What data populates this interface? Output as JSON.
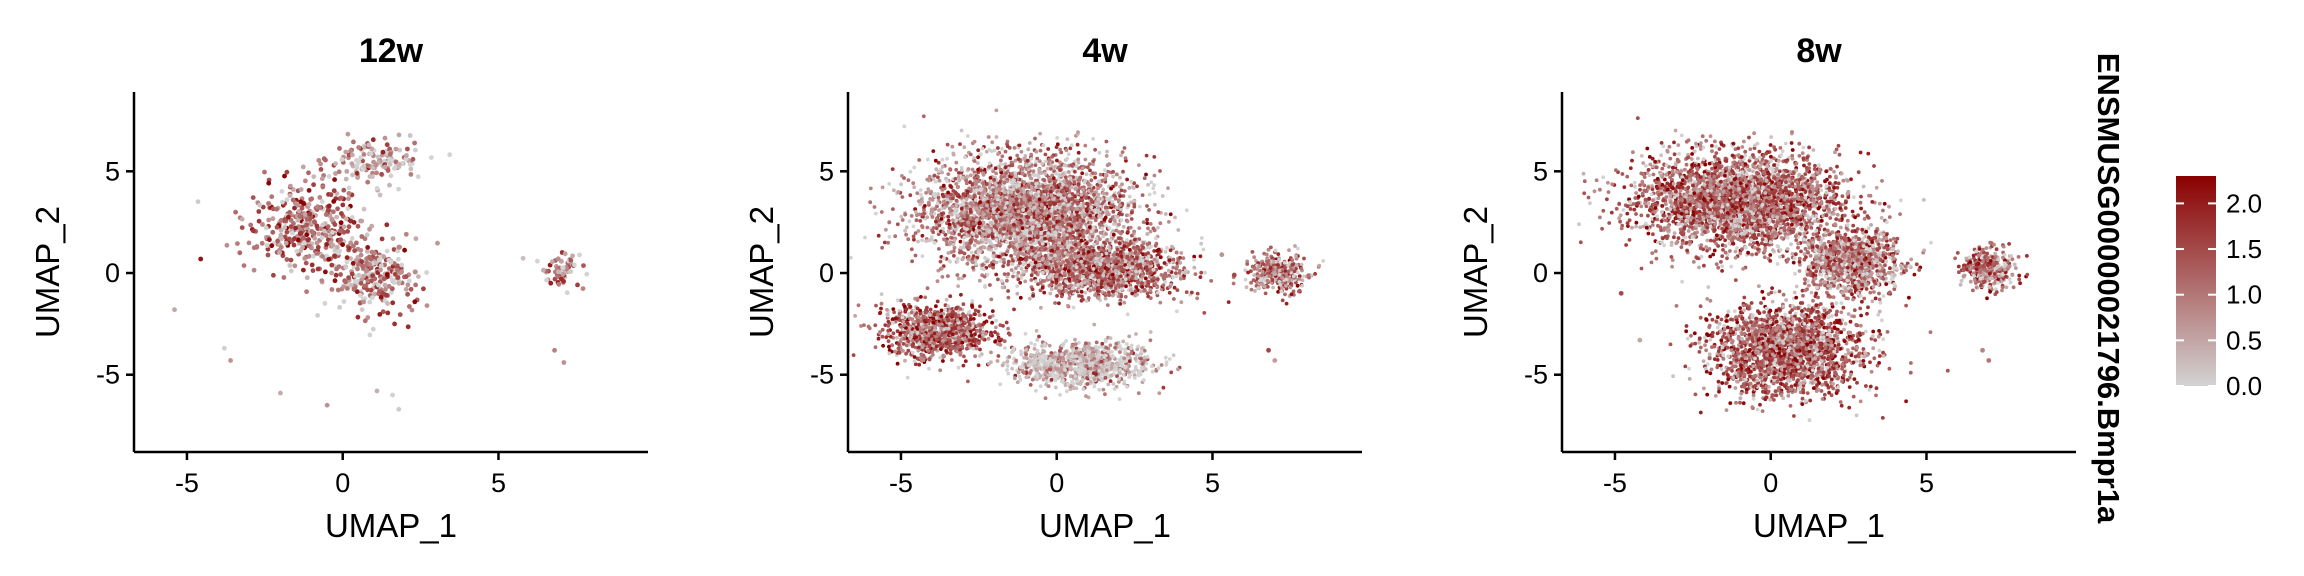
{
  "figure": {
    "legend": {
      "title": "ENSMUSG00000021796.Bmpr1a",
      "ticks": [
        0.0,
        0.5,
        1.0,
        1.5,
        2.0
      ],
      "tick_labels": [
        "0.0",
        "0.5",
        "1.0",
        "1.5",
        "2.0"
      ],
      "range": [
        0,
        2.3
      ],
      "color_low": "#d3d3d3",
      "color_high": "#8b0000"
    }
  },
  "chart_data": [
    {
      "type": "scatter",
      "title": "12w",
      "xlabel": "UMAP_1",
      "ylabel": "UMAP_2",
      "xlim": [
        -6.7,
        9.8
      ],
      "ylim": [
        -8.8,
        8.9
      ],
      "xticks": [
        -5,
        0,
        5
      ],
      "yticks": [
        -5,
        0,
        5
      ],
      "grid": false,
      "color_scale": "expression (grey to dark red)",
      "density": "sparse",
      "clusters": [
        {
          "center": [
            -1.2,
            2.3
          ],
          "spread": [
            1.8,
            1.9
          ],
          "expression_mean": 1.2
        },
        {
          "center": [
            1.0,
            -0.2
          ],
          "spread": [
            1.5,
            1.6
          ],
          "expression_mean": 1.1
        },
        {
          "center": [
            1.0,
            5.5
          ],
          "spread": [
            1.3,
            1.0
          ],
          "expression_mean": 0.7
        },
        {
          "center": [
            7.0,
            0.2
          ],
          "spread": [
            0.7,
            0.8
          ],
          "expression_mean": 0.9
        }
      ],
      "outliers": [
        [
          -5.4,
          -1.8
        ],
        [
          -3.8,
          -3.7
        ],
        [
          -3.6,
          -4.3
        ],
        [
          -2.0,
          -5.9
        ],
        [
          -0.5,
          -6.5
        ],
        [
          1.1,
          -5.8
        ],
        [
          1.6,
          -6.0
        ],
        [
          1.8,
          -6.7
        ],
        [
          6.8,
          -3.8
        ],
        [
          7.1,
          -4.4
        ]
      ]
    },
    {
      "type": "scatter",
      "title": "4w",
      "xlabel": "UMAP_1",
      "ylabel": "UMAP_2",
      "xlim": [
        -6.7,
        9.8
      ],
      "ylim": [
        -8.8,
        8.9
      ],
      "xticks": [
        -5,
        0,
        5
      ],
      "yticks": [
        -5,
        0,
        5
      ],
      "grid": false,
      "color_scale": "expression (grey to dark red)",
      "density": "dense",
      "clusters": [
        {
          "center": [
            -1.0,
            3.0
          ],
          "spread": [
            3.0,
            2.4
          ],
          "expression_mean": 1.0
        },
        {
          "center": [
            -3.8,
            -2.9
          ],
          "spread": [
            1.6,
            1.2
          ],
          "expression_mean": 1.4
        },
        {
          "center": [
            1.5,
            0.2
          ],
          "spread": [
            2.3,
            1.3
          ],
          "expression_mean": 1.2
        },
        {
          "center": [
            0.8,
            -4.5
          ],
          "spread": [
            2.0,
            1.0
          ],
          "expression_mean": 0.4
        },
        {
          "center": [
            7.1,
            0.0
          ],
          "spread": [
            0.8,
            0.9
          ],
          "expression_mean": 1.2
        }
      ],
      "outliers": [
        [
          6.8,
          -3.8
        ],
        [
          7.0,
          -4.3
        ],
        [
          5.7,
          -0.1
        ],
        [
          5.3,
          0.9
        ]
      ]
    },
    {
      "type": "scatter",
      "title": "8w",
      "xlabel": "UMAP_1",
      "ylabel": "UMAP_2",
      "xlim": [
        -6.7,
        9.8
      ],
      "ylim": [
        -8.8,
        8.9
      ],
      "xticks": [
        -5,
        0,
        5
      ],
      "yticks": [
        -5,
        0,
        5
      ],
      "grid": false,
      "color_scale": "expression (grey to dark red)",
      "density": "dense",
      "clusters": [
        {
          "center": [
            -1.0,
            3.5
          ],
          "spread": [
            3.0,
            2.1
          ],
          "expression_mean": 1.3
        },
        {
          "center": [
            0.5,
            -3.8
          ],
          "spread": [
            2.2,
            2.0
          ],
          "expression_mean": 1.4
        },
        {
          "center": [
            2.6,
            0.5
          ],
          "spread": [
            1.4,
            1.5
          ],
          "expression_mean": 1.1
        },
        {
          "center": [
            7.0,
            0.2
          ],
          "spread": [
            0.8,
            0.9
          ],
          "expression_mean": 1.2
        }
      ],
      "outliers": [
        [
          6.8,
          -3.8
        ],
        [
          7.0,
          -4.3
        ],
        [
          -4.2,
          -3.3
        ],
        [
          -4.8,
          -1.0
        ]
      ]
    }
  ]
}
